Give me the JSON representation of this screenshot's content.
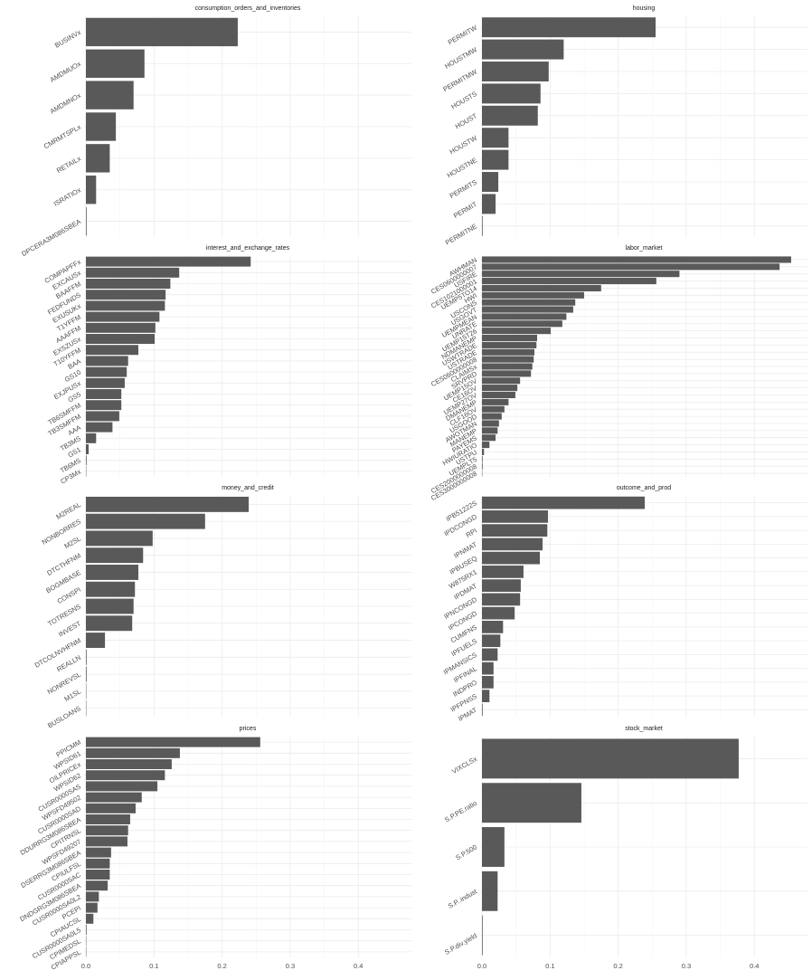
{
  "chart_data": [
    {
      "type": "bar",
      "horizontal": true,
      "title": "consumption_orders_and_inventories",
      "color": "#595959",
      "grid": true,
      "categories": [
        "BUSINVx",
        "AMDMUOx",
        "AMDMNOx",
        "CMRMTSPLx",
        "RETAILx",
        "ISRATIOx",
        "DPCERA3M086SBEA"
      ],
      "values": [
        0.223,
        0.086,
        0.07,
        0.044,
        0.035,
        0.015,
        0.001
      ],
      "xlim": [
        0,
        0.478
      ],
      "xticks": [
        0,
        0.1,
        0.2,
        0.3,
        0.4
      ]
    },
    {
      "type": "bar",
      "horizontal": true,
      "title": "housing",
      "color": "#595959",
      "grid": true,
      "categories": [
        "PERMITW",
        "HOUSTMW",
        "PERMITMW",
        "HOUSTS",
        "HOUST",
        "HOUSTW",
        "HOUSTNE",
        "PERMITS",
        "PERMIT",
        "PERMITNE"
      ],
      "values": [
        0.255,
        0.12,
        0.098,
        0.086,
        0.082,
        0.039,
        0.039,
        0.024,
        0.02,
        0.001
      ],
      "xlim": [
        0,
        0.478
      ],
      "xticks": [
        0,
        0.1,
        0.2,
        0.3,
        0.4
      ]
    },
    {
      "type": "bar",
      "horizontal": true,
      "title": "interest_and_exchange_rates",
      "color": "#595959",
      "grid": true,
      "categories": [
        "COMPAPFFx",
        "EXCAUSx",
        "BAAFFM",
        "FEDFUNDS",
        "EXUSUKx",
        "T1YFFM",
        "AAAFFM",
        "EXSZUSx",
        "T10YFFM",
        "BAA",
        "GS10",
        "EXJPUSx",
        "GS5",
        "TB6SMFFM",
        "TB3SMFFM",
        "AAA",
        "TB3MS",
        "GS1",
        "TB6MS",
        "CP3Mx"
      ],
      "values": [
        0.242,
        0.137,
        0.124,
        0.117,
        0.116,
        0.108,
        0.102,
        0.101,
        0.077,
        0.062,
        0.06,
        0.057,
        0.052,
        0.052,
        0.049,
        0.039,
        0.015,
        0.004,
        0.001,
        0.0005
      ],
      "xlim": [
        0,
        0.478
      ],
      "xticks": [
        0,
        0.1,
        0.2,
        0.3,
        0.4
      ]
    },
    {
      "type": "bar",
      "horizontal": true,
      "title": "labor_market",
      "color": "#595959",
      "grid": true,
      "categories": [
        "AWHMAN",
        "CES0600000007",
        "USFIRE",
        "CES1021000001",
        "UEMP5TO14",
        "HWI",
        "USCONS",
        "USGOVT",
        "UEMPMEAN",
        "UNRATE",
        "UEMP15T26",
        "NDMANEMP",
        "USWTRADE",
        "USTRADE",
        "CES0600000008",
        "CLAIMSx",
        "SRVPRD",
        "UEMP15OV",
        "CE16OV",
        "UEMP27OV",
        "DMANEMP",
        "CLF16OV",
        "USGOOD",
        "AWOTMAN",
        "MANEMP",
        "PAYEMS",
        "HWIURATIO",
        "USTPU",
        "UEMPLT5",
        "CES2000000008",
        "CES3000000008"
      ],
      "values": [
        0.454,
        0.437,
        0.29,
        0.256,
        0.175,
        0.15,
        0.137,
        0.134,
        0.124,
        0.118,
        0.101,
        0.081,
        0.08,
        0.077,
        0.076,
        0.074,
        0.072,
        0.056,
        0.052,
        0.049,
        0.039,
        0.033,
        0.029,
        0.025,
        0.023,
        0.02,
        0.011,
        0.003,
        0.001,
        0.001,
        0.0005
      ],
      "xlim": [
        0,
        0.478
      ],
      "xticks": [
        0,
        0.1,
        0.2,
        0.3,
        0.4
      ]
    },
    {
      "type": "bar",
      "horizontal": true,
      "title": "money_and_credit",
      "color": "#595959",
      "grid": true,
      "categories": [
        "M2REAL",
        "NONBORRES",
        "M2SL",
        "DTCTHFNM",
        "BOGMBASE",
        "CONSPI",
        "TOTRESNS",
        "INVEST",
        "DTCOLNVHFNM",
        "REALLN",
        "NONREVSL",
        "M1SL",
        "BUSLOANS"
      ],
      "values": [
        0.239,
        0.175,
        0.098,
        0.084,
        0.077,
        0.072,
        0.07,
        0.068,
        0.028,
        0.001,
        0.001,
        0.0005,
        0.0005
      ],
      "xlim": [
        0,
        0.478
      ],
      "xticks": [
        0,
        0.1,
        0.2,
        0.3,
        0.4
      ]
    },
    {
      "type": "bar",
      "horizontal": true,
      "title": "outcome_and_prod",
      "color": "#595959",
      "grid": true,
      "categories": [
        "IPB51222S",
        "IPDCONGD",
        "RPI",
        "IPNMAT",
        "IPBUSEQ",
        "W875RX1",
        "IPDMAT",
        "IPNCONGD",
        "IPCONGD",
        "CUMFNS",
        "IPFUELS",
        "IPMANSICS",
        "IPFINAL",
        "INDPRO",
        "IPFPNSS",
        "IPMAT"
      ],
      "values": [
        0.239,
        0.097,
        0.096,
        0.089,
        0.085,
        0.061,
        0.057,
        0.056,
        0.048,
        0.031,
        0.027,
        0.023,
        0.017,
        0.017,
        0.011,
        0.001
      ],
      "xlim": [
        0,
        0.478
      ],
      "xticks": [
        0,
        0.1,
        0.2,
        0.3,
        0.4
      ]
    },
    {
      "type": "bar",
      "horizontal": true,
      "title": "prices",
      "color": "#595959",
      "grid": true,
      "categories": [
        "PPICMM",
        "WPSID61",
        "OILPRICEx",
        "WPSID62",
        "CUSR0000SAS",
        "WPSFD49502",
        "CUSR0000SAD",
        "DDURRG3M086SBEA",
        "CPITRNSL",
        "WPSFD49207",
        "DSERRG3M086SBEA",
        "CPIULFSL",
        "CUSR0000SAC",
        "DNDGRG3M086SBEA",
        "CUSR0000SA0L2",
        "PCEPI",
        "CPIAUCSL",
        "CUSR0000SA0L5",
        "CPIMEDSL",
        "CPIAPPSL"
      ],
      "values": [
        0.256,
        0.138,
        0.126,
        0.116,
        0.105,
        0.082,
        0.073,
        0.065,
        0.062,
        0.061,
        0.037,
        0.035,
        0.035,
        0.032,
        0.019,
        0.017,
        0.011,
        0.001,
        0.0005,
        0.0005
      ],
      "xlim": [
        0,
        0.478
      ],
      "xticks": [
        {
          "value": 0,
          "label": "0.0"
        },
        {
          "value": 0.1,
          "label": "0.1"
        },
        {
          "value": 0.2,
          "label": "0.2"
        },
        {
          "value": 0.3,
          "label": "0.3"
        },
        {
          "value": 0.4,
          "label": "0.4"
        }
      ]
    },
    {
      "type": "bar",
      "horizontal": true,
      "title": "stock_market",
      "color": "#595959",
      "grid": true,
      "categories": [
        "VIXCLSx",
        "S.P.PE.ratio",
        "S.P.500",
        "S.P..indust",
        "S.P.div.yield"
      ],
      "values": [
        0.377,
        0.146,
        0.033,
        0.023,
        0.001
      ],
      "xlim": [
        0,
        0.478
      ],
      "xticks": [
        {
          "value": 0,
          "label": "0.0"
        },
        {
          "value": 0.1,
          "label": "0.1"
        },
        {
          "value": 0.2,
          "label": "0.2"
        },
        {
          "value": 0.3,
          "label": "0.3"
        },
        {
          "value": 0.4,
          "label": "0.4"
        }
      ]
    }
  ]
}
